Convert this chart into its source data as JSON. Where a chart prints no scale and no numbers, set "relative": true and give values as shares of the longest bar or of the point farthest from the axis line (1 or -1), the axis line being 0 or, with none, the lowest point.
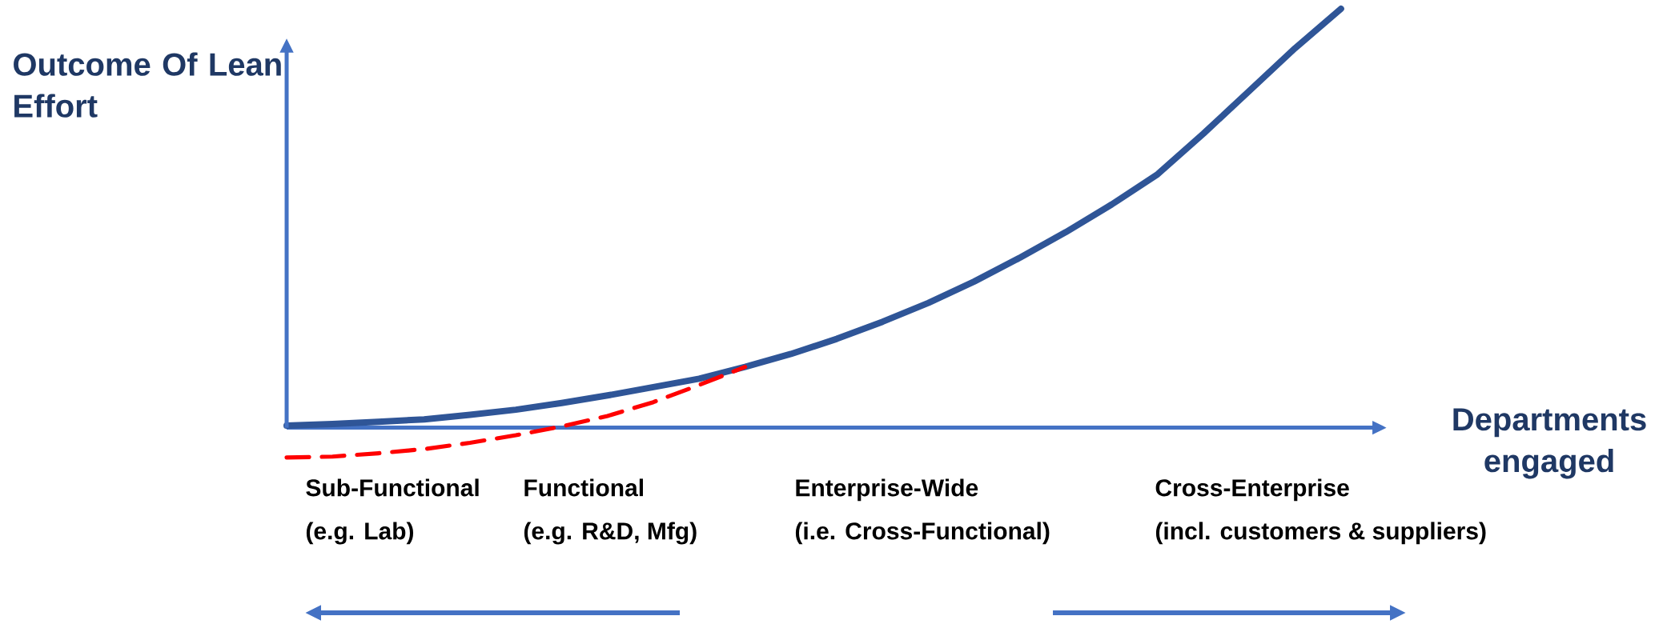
{
  "chart_data": {
    "type": "line",
    "relative": true,
    "ylabel": "Outcome Of Lean Effort",
    "xlabel": "Departments engaged",
    "ref_lines": [
      {
        "axis": "y",
        "value": 0,
        "color": "#4472c4"
      }
    ],
    "categories": [
      null,
      null,
      null,
      null,
      null,
      null,
      null,
      null,
      null,
      null,
      null,
      null,
      null,
      null,
      null,
      null,
      null,
      null,
      null,
      null,
      null,
      null,
      null,
      null,
      null
    ],
    "series": [
      {
        "color": "#2f5597",
        "values": [
          0.005,
          0.009,
          0.014,
          0.02,
          0.031,
          0.043,
          0.059,
          0.077,
          0.097,
          0.117,
          0.145,
          0.176,
          0.212,
          0.253,
          0.298,
          0.349,
          0.406,
          0.467,
          0.533,
          0.605,
          0.702,
          0.804,
          0.906,
          1.0,
          null
        ]
      },
      {
        "color": "#ff0000",
        "line_style": "dashed",
        "values": [
          -0.071,
          -0.069,
          -0.061,
          -0.051,
          -0.036,
          -0.018,
          0.003,
          0.028,
          0.061,
          0.102,
          0.145,
          null,
          null,
          null,
          null,
          null,
          null,
          null,
          null,
          null,
          null,
          null,
          null,
          null,
          null
        ]
      }
    ],
    "annotations": [
      "Sub-Functional",
      "(e.g. Lab)",
      "Functional",
      "(e.g. R&D, Mfg)",
      "Enterprise-Wide",
      "(i.e. Cross-Functional)",
      "Cross-Enterprise",
      "(incl. customers & suppliers)"
    ]
  }
}
